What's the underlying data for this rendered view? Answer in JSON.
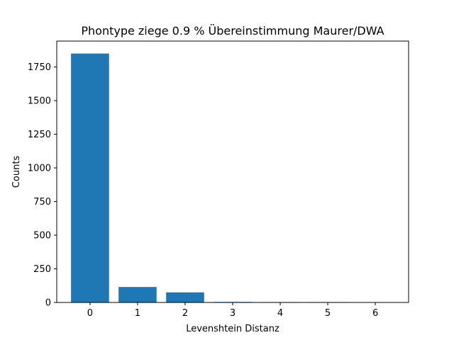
{
  "chart_data": {
    "type": "bar",
    "title": "Phontype ziege  0.9 % Übereinstimmung Maurer/DWA",
    "xlabel": "Levenshtein Distanz",
    "ylabel": "Counts",
    "categories": [
      "0",
      "1",
      "2",
      "3",
      "4",
      "5",
      "6"
    ],
    "x": [
      0,
      1,
      2,
      3,
      4,
      5,
      6
    ],
    "values": [
      1850,
      115,
      75,
      4,
      3,
      3,
      2
    ],
    "xlim": [
      -0.7,
      6.7
    ],
    "ylim": [
      0,
      1942.5
    ],
    "yticks": [
      0,
      250,
      500,
      750,
      1000,
      1250,
      1500,
      1750
    ],
    "bar_color": "#1f77b4",
    "grid": false,
    "legend": "none"
  }
}
